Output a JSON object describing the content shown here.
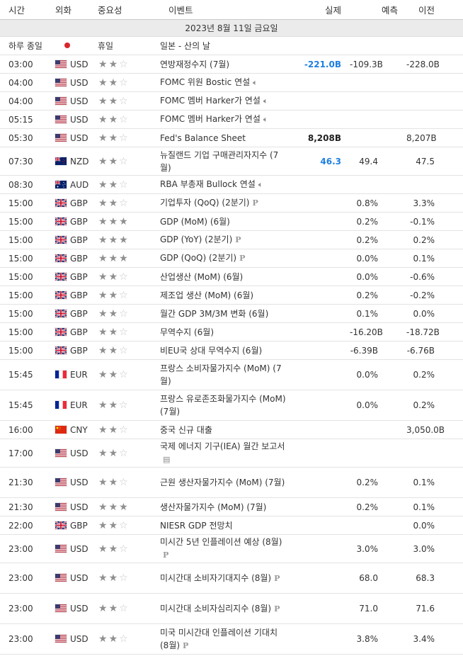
{
  "header": {
    "time": "시간",
    "currency": "외화",
    "importance": "중요성",
    "event": "이벤트",
    "actual": "실제",
    "forecast": "예측",
    "previous": "이전"
  },
  "date_label": "2023년 8월 11일 금요일",
  "holiday": {
    "time": "하루 종일",
    "label": "휴일",
    "event": "일본 - 산의 날",
    "flag": "JP"
  },
  "colors": {
    "actual_positive": "#1f7fe0",
    "date_row_bg": "#ebebeb",
    "star_on": "#8f8f8f",
    "star_off": "#c6c6c6"
  },
  "events": [
    {
      "time": "03:00",
      "flag": "US",
      "currency": "USD",
      "stars": 2,
      "event": "연방재정수지 (7월)",
      "icon": "",
      "actual": "-221.0B",
      "actual_style": "blue",
      "forecast": "-109.3B",
      "previous": "-228.0B"
    },
    {
      "time": "04:00",
      "flag": "US",
      "currency": "USD",
      "stars": 2,
      "event": "FOMC 위원 Bostic 연설",
      "icon": "speaker-icon",
      "actual": "",
      "actual_style": "",
      "forecast": "",
      "previous": ""
    },
    {
      "time": "04:00",
      "flag": "US",
      "currency": "USD",
      "stars": 2,
      "event": "FOMC 멤버 Harker가 연설",
      "icon": "speaker-icon",
      "actual": "",
      "actual_style": "",
      "forecast": "",
      "previous": ""
    },
    {
      "time": "05:15",
      "flag": "US",
      "currency": "USD",
      "stars": 2,
      "event": "FOMC 멤버 Harker가 연설",
      "icon": "speaker-icon",
      "actual": "",
      "actual_style": "",
      "forecast": "",
      "previous": ""
    },
    {
      "time": "05:30",
      "flag": "US",
      "currency": "USD",
      "stars": 2,
      "event": "Fed's Balance Sheet",
      "icon": "",
      "actual": "8,208B",
      "actual_style": "black",
      "forecast": "",
      "previous": "8,207B"
    },
    {
      "time": "07:30",
      "flag": "NZ",
      "currency": "NZD",
      "stars": 2,
      "event": "뉴질랜드 기업 구매관리자지수 (7월)",
      "icon": "",
      "actual": "46.3",
      "actual_style": "blue",
      "forecast": "49.4",
      "previous": "47.5"
    },
    {
      "time": "08:30",
      "flag": "AU",
      "currency": "AUD",
      "stars": 2,
      "event": "RBA 부총재 Bullock 연설",
      "icon": "speaker-icon",
      "actual": "",
      "actual_style": "",
      "forecast": "",
      "previous": ""
    },
    {
      "time": "15:00",
      "flag": "GB",
      "currency": "GBP",
      "stars": 2,
      "event": "기업투자 (QoQ) (2분기)",
      "icon": "preliminary-icon",
      "actual": "",
      "actual_style": "",
      "forecast": "0.8%",
      "previous": "3.3%"
    },
    {
      "time": "15:00",
      "flag": "GB",
      "currency": "GBP",
      "stars": 3,
      "event": "GDP (MoM) (6월)",
      "icon": "",
      "actual": "",
      "actual_style": "",
      "forecast": "0.2%",
      "previous": "-0.1%"
    },
    {
      "time": "15:00",
      "flag": "GB",
      "currency": "GBP",
      "stars": 3,
      "event": "GDP (YoY) (2분기)",
      "icon": "preliminary-icon",
      "actual": "",
      "actual_style": "",
      "forecast": "0.2%",
      "previous": "0.2%"
    },
    {
      "time": "15:00",
      "flag": "GB",
      "currency": "GBP",
      "stars": 3,
      "event": "GDP (QoQ) (2분기)",
      "icon": "preliminary-icon",
      "actual": "",
      "actual_style": "",
      "forecast": "0.0%",
      "previous": "0.1%"
    },
    {
      "time": "15:00",
      "flag": "GB",
      "currency": "GBP",
      "stars": 2,
      "event": "산업생산 (MoM) (6월)",
      "icon": "",
      "actual": "",
      "actual_style": "",
      "forecast": "0.0%",
      "previous": "-0.6%"
    },
    {
      "time": "15:00",
      "flag": "GB",
      "currency": "GBP",
      "stars": 2,
      "event": "제조업 생산 (MoM) (6월)",
      "icon": "",
      "actual": "",
      "actual_style": "",
      "forecast": "0.2%",
      "previous": "-0.2%"
    },
    {
      "time": "15:00",
      "flag": "GB",
      "currency": "GBP",
      "stars": 2,
      "event": "월간 GDP 3M/3M 변화 (6월)",
      "icon": "",
      "actual": "",
      "actual_style": "",
      "forecast": "0.1%",
      "previous": "0.0%"
    },
    {
      "time": "15:00",
      "flag": "GB",
      "currency": "GBP",
      "stars": 2,
      "event": "무역수지 (6월)",
      "icon": "",
      "actual": "",
      "actual_style": "",
      "forecast": "-16.20B",
      "previous": "-18.72B"
    },
    {
      "time": "15:00",
      "flag": "GB",
      "currency": "GBP",
      "stars": 2,
      "event": "비EU국 상대 무역수지 (6월)",
      "icon": "",
      "actual": "",
      "actual_style": "",
      "forecast": "-6.39B",
      "previous": "-6.76B"
    },
    {
      "time": "15:45",
      "flag": "FR",
      "currency": "EUR",
      "stars": 2,
      "event": "프랑스 소비자물가지수 (MoM) (7월)",
      "icon": "",
      "actual": "",
      "actual_style": "",
      "forecast": "0.0%",
      "previous": "0.2%"
    },
    {
      "time": "15:45",
      "flag": "FR",
      "currency": "EUR",
      "stars": 2,
      "event": "프랑스 유로존조화물가지수 (MoM) (7월)",
      "icon": "",
      "actual": "",
      "actual_style": "",
      "forecast": "0.0%",
      "previous": "0.2%"
    },
    {
      "time": "16:00",
      "flag": "CN",
      "currency": "CNY",
      "stars": 2,
      "event": "중국 신규 대출",
      "icon": "",
      "actual": "",
      "actual_style": "",
      "forecast": "",
      "previous": "3,050.0B"
    },
    {
      "time": "17:00",
      "flag": "US",
      "currency": "USD",
      "stars": 2,
      "event": "국제 에너지 기구(IEA) 월간 보고서",
      "icon": "report-icon",
      "actual": "",
      "actual_style": "",
      "forecast": "",
      "previous": ""
    },
    {
      "time": "21:30",
      "flag": "US",
      "currency": "USD",
      "stars": 2,
      "event": "근원 생산자물가지수 (MoM) (7월)",
      "icon": "",
      "actual": "",
      "actual_style": "",
      "forecast": "0.2%",
      "previous": "0.1%"
    },
    {
      "time": "21:30",
      "flag": "US",
      "currency": "USD",
      "stars": 3,
      "event": "생산자물가지수 (MoM) (7월)",
      "icon": "",
      "actual": "",
      "actual_style": "",
      "forecast": "0.2%",
      "previous": "0.1%"
    },
    {
      "time": "22:00",
      "flag": "GB",
      "currency": "GBP",
      "stars": 2,
      "event": "NIESR GDP 전망치",
      "icon": "",
      "actual": "",
      "actual_style": "",
      "forecast": "",
      "previous": "0.0%"
    },
    {
      "time": "23:00",
      "flag": "US",
      "currency": "USD",
      "stars": 2,
      "event": "미시간 5년 인플레이션 예상 (8월)",
      "icon": "preliminary-icon",
      "actual": "",
      "actual_style": "",
      "forecast": "3.0%",
      "previous": "3.0%"
    },
    {
      "time": "23:00",
      "flag": "US",
      "currency": "USD",
      "stars": 2,
      "event": "미시간대 소비자기대지수 (8월)",
      "icon": "preliminary-icon",
      "actual": "",
      "actual_style": "",
      "forecast": "68.0",
      "previous": "68.3"
    },
    {
      "time": "23:00",
      "flag": "US",
      "currency": "USD",
      "stars": 2,
      "event": "미시간대 소비자심리지수 (8월)",
      "icon": "preliminary-icon",
      "actual": "",
      "actual_style": "",
      "forecast": "71.0",
      "previous": "71.6"
    },
    {
      "time": "23:00",
      "flag": "US",
      "currency": "USD",
      "stars": 2,
      "event": "미국 미시간대 인플레이션 기대치 (8월)",
      "icon": "preliminary-icon",
      "actual": "",
      "actual_style": "",
      "forecast": "3.8%",
      "previous": "3.4%"
    }
  ]
}
